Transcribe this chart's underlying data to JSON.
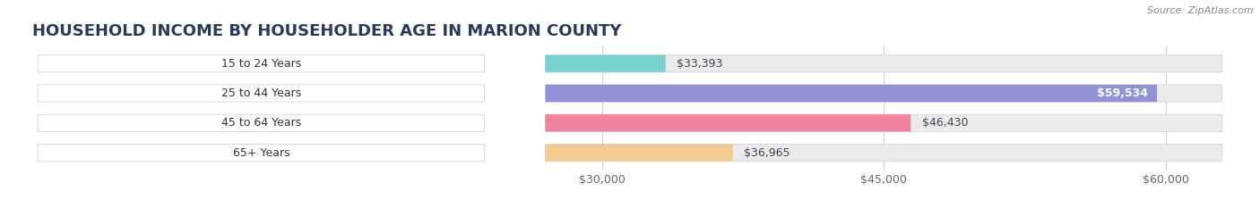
{
  "title": "HOUSEHOLD INCOME BY HOUSEHOLDER AGE IN MARION COUNTY",
  "source": "Source: ZipAtlas.com",
  "categories": [
    "15 to 24 Years",
    "25 to 44 Years",
    "45 to 64 Years",
    "65+ Years"
  ],
  "values": [
    33393,
    59534,
    46430,
    36965
  ],
  "bar_colors": [
    "#6dcfcc",
    "#8888d8",
    "#f07898",
    "#f5c888"
  ],
  "value_labels": [
    "$33,393",
    "$59,534",
    "$46,430",
    "$36,965"
  ],
  "value_label_inside": [
    false,
    true,
    false,
    false
  ],
  "x_ticks": [
    30000,
    45000,
    60000
  ],
  "x_tick_labels": [
    "$30,000",
    "$45,000",
    "$60,000"
  ],
  "xlim_min": 0,
  "xlim_max": 63000,
  "data_min": 27000,
  "background_color": "#ffffff",
  "bar_bg_color": "#ebebeb",
  "title_color": "#2a3a5a",
  "title_fontsize": 13,
  "source_fontsize": 8,
  "label_fontsize": 9,
  "value_fontsize": 9
}
